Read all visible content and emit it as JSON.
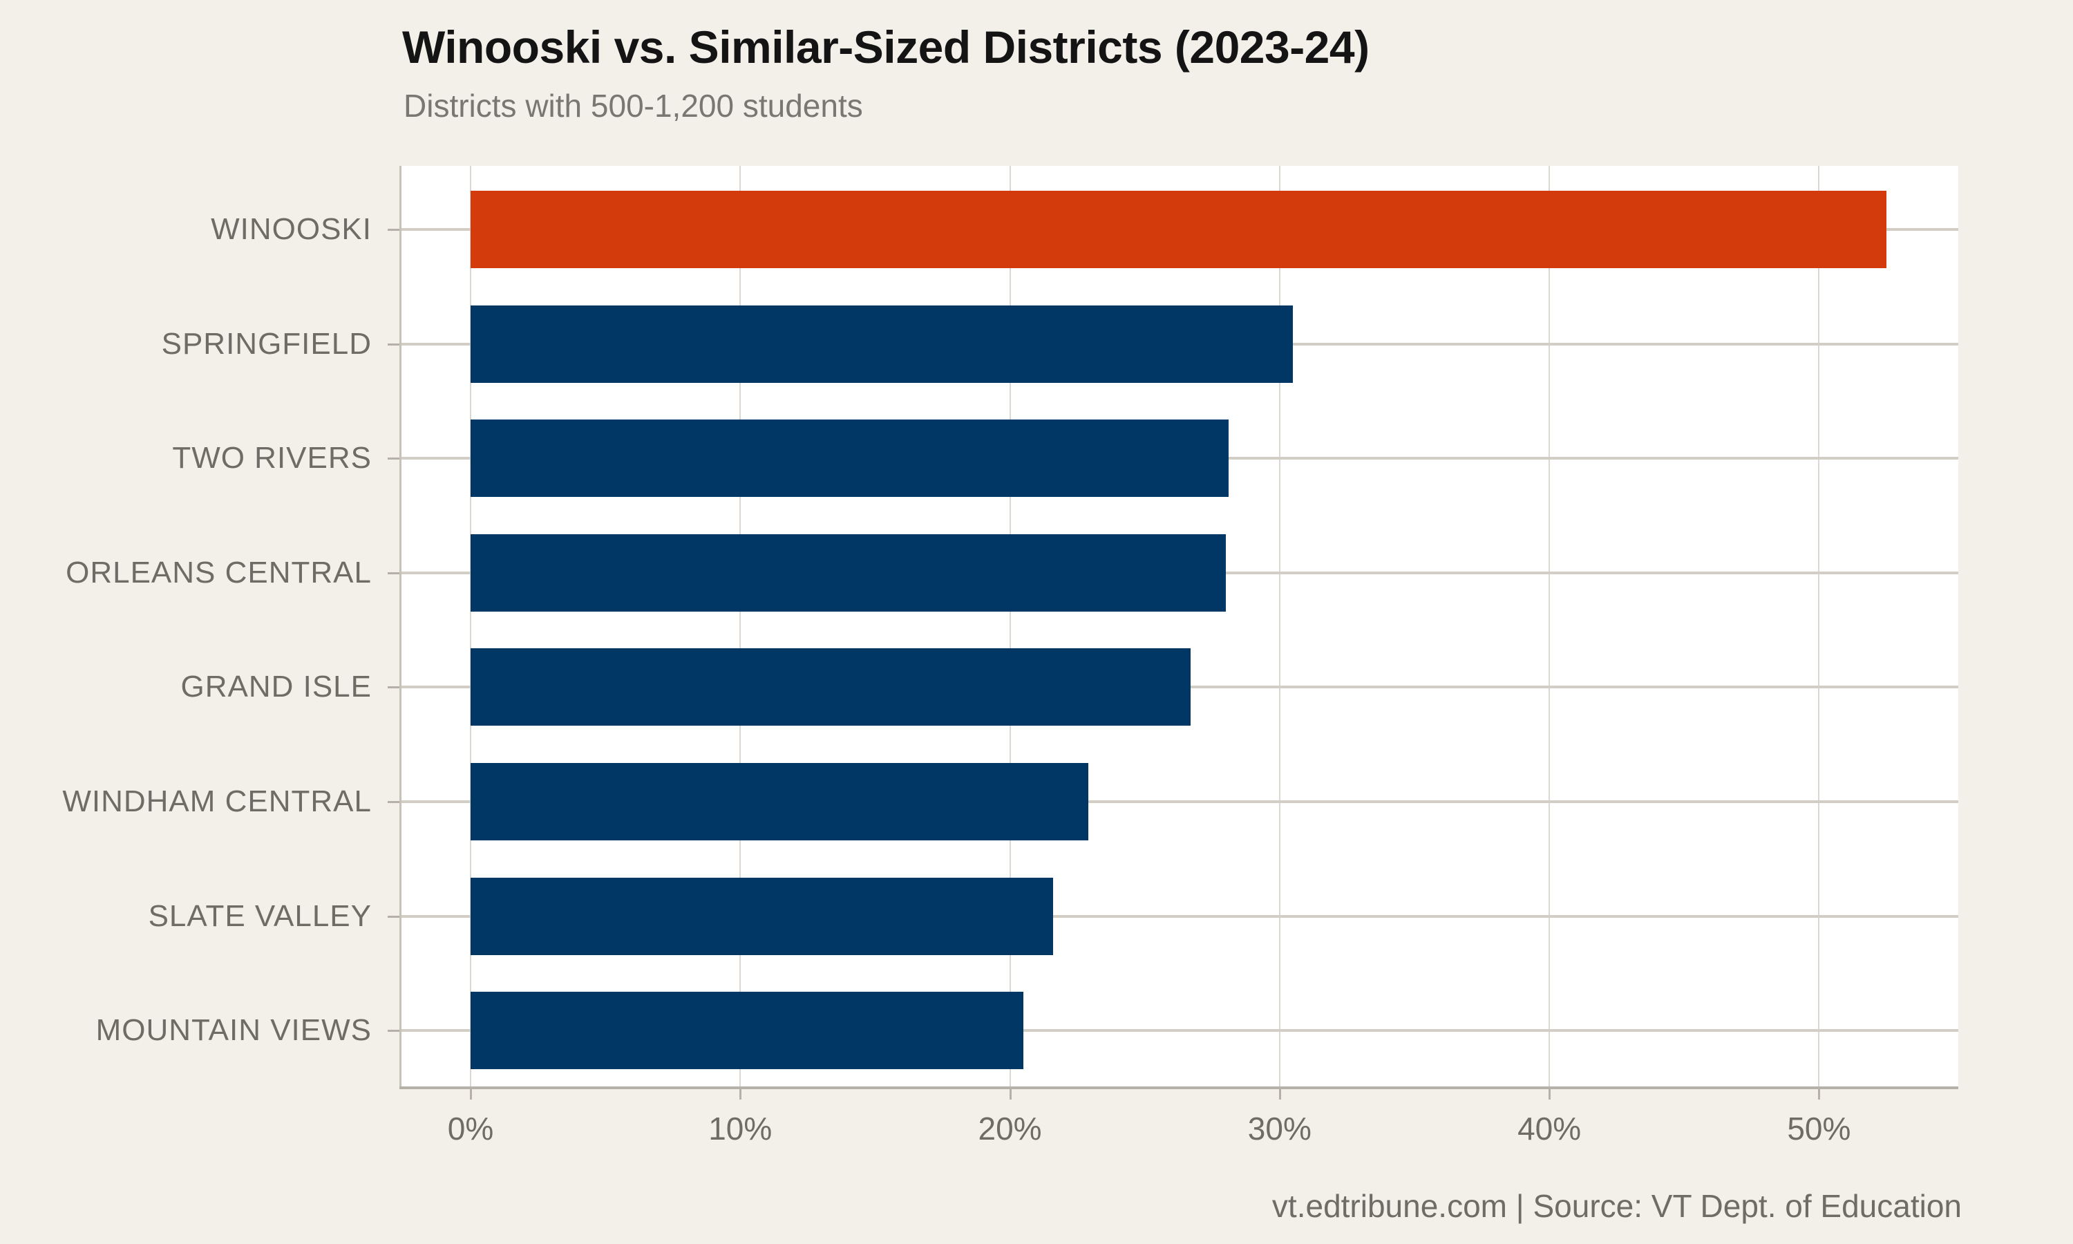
{
  "page": {
    "background_color": "#f3f0ea",
    "plot_background_color": "#ffffff"
  },
  "chart_data": {
    "type": "bar",
    "orientation": "horizontal",
    "title": "Winooski vs. Similar-Sized Districts (2023-24)",
    "subtitle": "Districts with 500-1,200 students",
    "categories": [
      "WINOOSKI",
      "SPRINGFIELD",
      "TWO RIVERS",
      "ORLEANS CENTRAL",
      "GRAND ISLE",
      "WINDHAM CENTRAL",
      "SLATE VALLEY",
      "MOUNTAIN VIEWS"
    ],
    "values": [
      52.5,
      30.5,
      28.1,
      28.0,
      26.7,
      22.9,
      21.6,
      20.5
    ],
    "unit": "%",
    "highlight_category": "WINOOSKI",
    "colors": {
      "highlight": "#d33b0d",
      "default": "#003764"
    },
    "x_axis": {
      "min": 0,
      "max": 55.2,
      "grid": true,
      "ticks": [
        {
          "value": 0,
          "label": "0%"
        },
        {
          "value": 10,
          "label": "10%"
        },
        {
          "value": 20,
          "label": "20%"
        },
        {
          "value": 30,
          "label": "30%"
        },
        {
          "value": 40,
          "label": "40%"
        },
        {
          "value": 50,
          "label": "50%"
        }
      ]
    },
    "legend": "none",
    "source": "vt.edtribune.com | Source: VT Dept. of Education"
  }
}
